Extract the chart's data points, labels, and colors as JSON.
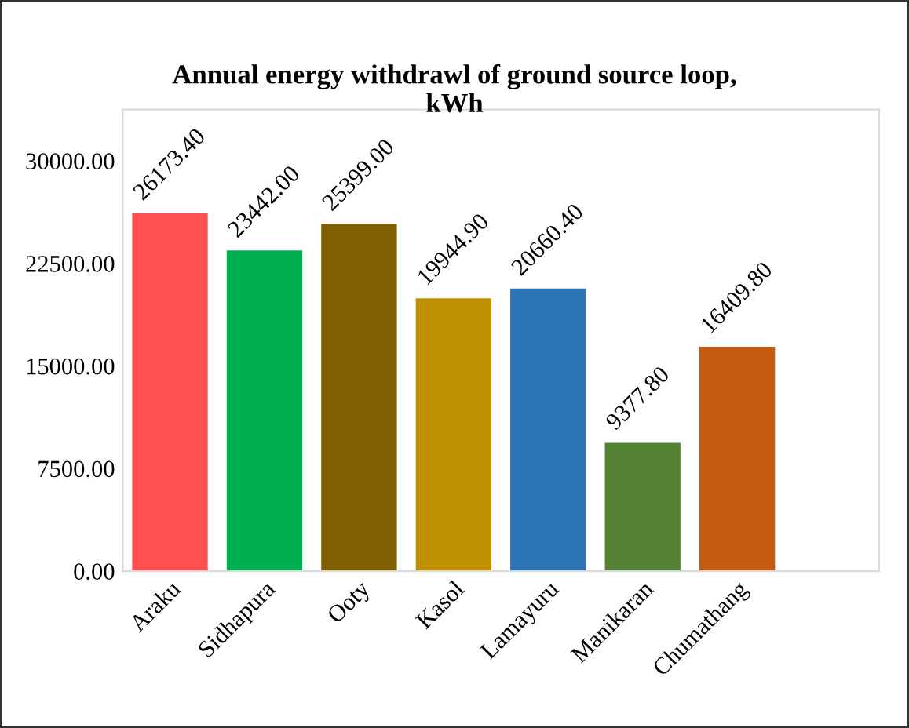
{
  "chart_data": {
    "type": "bar",
    "title": "Annual energy withdrawl of ground source loop,\nkWh",
    "categories": [
      "Araku",
      "Sidhapura",
      "Ooty",
      "Kasol",
      "Lamayuru",
      "Manikaran",
      "Chumathang"
    ],
    "values": [
      26173.4,
      23442.0,
      25399.0,
      19944.9,
      20660.4,
      9377.8,
      16409.8
    ],
    "colors": [
      "#ff5050",
      "#00b050",
      "#7f6000",
      "#bf9000",
      "#2e75b6",
      "#548235",
      "#c55a11"
    ],
    "value_labels": [
      "26173.40",
      "23442.00",
      "25399.00",
      "19944.90",
      "20660.40",
      "9377.80",
      "16409.80"
    ],
    "ylim": [
      0,
      33750
    ],
    "yticks": [
      {
        "value": 0,
        "label": "0.00"
      },
      {
        "value": 7500,
        "label": "7500.00"
      },
      {
        "value": 15000,
        "label": "15000.00"
      },
      {
        "value": 22500,
        "label": "22500.00"
      },
      {
        "value": 30000,
        "label": "30000.00"
      }
    ],
    "grid": false,
    "legend": false
  }
}
